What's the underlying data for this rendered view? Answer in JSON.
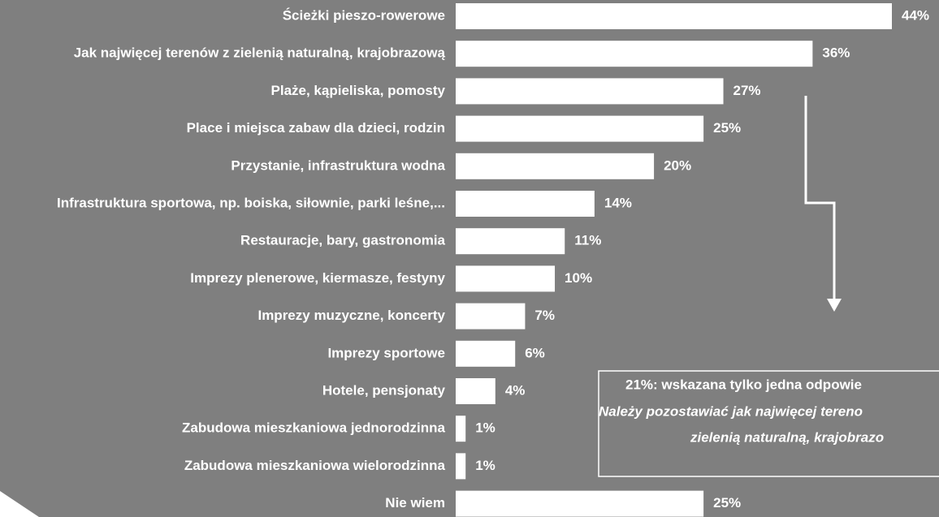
{
  "chart_data": {
    "type": "bar",
    "orientation": "horizontal",
    "categories": [
      "Ścieżki pieszo-rowerowe",
      "Jak najwięcej terenów z zielenią naturalną, krajobrazową",
      "Plaże, kąpieliska, pomosty",
      "Place i miejsca zabaw dla dzieci, rodzin",
      "Przystanie, infrastruktura wodna",
      "Infrastruktura sportowa, np. boiska, siłownie, parki leśne,...",
      "Restauracje, bary, gastronomia",
      "Imprezy plenerowe, kiermasze, festyny",
      "Imprezy muzyczne, koncerty",
      "Imprezy sportowe",
      "Hotele, pensjonaty",
      "Zabudowa mieszkaniowa jednorodzinna",
      "Zabudowa mieszkaniowa wielorodzinna",
      "Nie wiem"
    ],
    "values": [
      44,
      36,
      27,
      25,
      20,
      14,
      11,
      10,
      7,
      6,
      4,
      1,
      1,
      25
    ],
    "value_labels": [
      "44%",
      "36%",
      "27%",
      "25%",
      "20%",
      "14%",
      "11%",
      "10%",
      "7%",
      "6%",
      "4%",
      "1%",
      "1%",
      "25%"
    ],
    "color": "#ffffff",
    "annotation": {
      "lines": [
        "21%:  wskazana tylko jedna odpowie",
        "Należy pozostawiać jak najwięcej tereno",
        "zielenią naturalną, krajobrazo"
      ]
    }
  }
}
